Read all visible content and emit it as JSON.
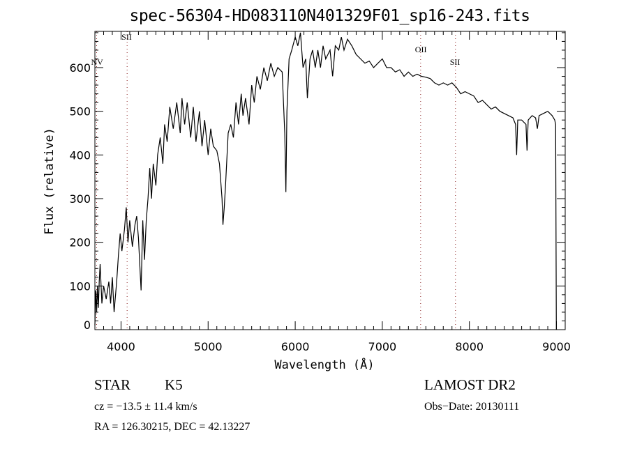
{
  "chart_data": {
    "type": "line",
    "title": "spec-56304-HD083110N401329F01_sp16-243.fits",
    "xlabel": "Wavelength (Å)",
    "ylabel": "Flux (relative)",
    "xlim": [
      3700,
      9100
    ],
    "ylim": [
      0,
      683
    ],
    "xticks": [
      4000,
      5000,
      6000,
      7000,
      8000,
      9000
    ],
    "yticks": [
      0,
      100,
      200,
      300,
      400,
      500,
      600
    ],
    "grid": false,
    "line_markers": [
      {
        "label": "NV",
        "wavelength": 3720
      },
      {
        "label": "SII",
        "wavelength": 4070
      },
      {
        "label": "OII",
        "wavelength": 7440
      },
      {
        "label": "SII",
        "wavelength": 7840
      }
    ],
    "series": [
      {
        "name": "spectrum",
        "x": [
          3700,
          3710,
          3720,
          3730,
          3740,
          3750,
          3760,
          3780,
          3800,
          3830,
          3860,
          3880,
          3900,
          3920,
          3950,
          3970,
          3990,
          4010,
          4040,
          4060,
          4080,
          4100,
          4130,
          4160,
          4180,
          4200,
          4230,
          4250,
          4270,
          4290,
          4310,
          4330,
          4350,
          4370,
          4400,
          4420,
          4450,
          4480,
          4500,
          4530,
          4560,
          4600,
          4640,
          4680,
          4700,
          4730,
          4760,
          4800,
          4830,
          4860,
          4900,
          4930,
          4960,
          5000,
          5030,
          5060,
          5100,
          5130,
          5160,
          5170,
          5185,
          5200,
          5230,
          5260,
          5290,
          5320,
          5350,
          5380,
          5400,
          5430,
          5470,
          5500,
          5530,
          5560,
          5600,
          5640,
          5680,
          5720,
          5760,
          5800,
          5850,
          5880,
          5893,
          5905,
          5930,
          5960,
          6000,
          6030,
          6060,
          6090,
          6120,
          6140,
          6170,
          6200,
          6230,
          6260,
          6290,
          6320,
          6350,
          6400,
          6430,
          6460,
          6500,
          6530,
          6560,
          6600,
          6650,
          6700,
          6750,
          6800,
          6850,
          6900,
          6950,
          7000,
          7050,
          7100,
          7150,
          7200,
          7250,
          7300,
          7350,
          7400,
          7450,
          7500,
          7550,
          7600,
          7650,
          7700,
          7750,
          7800,
          7850,
          7900,
          7950,
          8000,
          8050,
          8100,
          8150,
          8200,
          8250,
          8300,
          8350,
          8400,
          8450,
          8500,
          8530,
          8542,
          8555,
          8600,
          8650,
          8662,
          8675,
          8720,
          8760,
          8780,
          8800,
          8850,
          8900,
          8950,
          8980,
          8990,
          8998
        ],
        "y": [
          10,
          90,
          40,
          100,
          50,
          110,
          150,
          60,
          100,
          70,
          110,
          60,
          120,
          40,
          110,
          170,
          220,
          180,
          230,
          280,
          200,
          250,
          190,
          240,
          260,
          210,
          90,
          250,
          160,
          250,
          300,
          370,
          300,
          380,
          330,
          400,
          440,
          380,
          470,
          430,
          510,
          460,
          520,
          450,
          530,
          470,
          520,
          440,
          510,
          430,
          500,
          420,
          480,
          400,
          460,
          420,
          410,
          380,
          300,
          240,
          280,
          330,
          450,
          470,
          440,
          520,
          470,
          540,
          490,
          530,
          470,
          560,
          520,
          580,
          550,
          600,
          570,
          610,
          580,
          600,
          590,
          450,
          315,
          500,
          620,
          640,
          670,
          650,
          680,
          600,
          620,
          530,
          620,
          640,
          600,
          640,
          600,
          650,
          620,
          640,
          580,
          650,
          640,
          670,
          640,
          665,
          650,
          630,
          620,
          610,
          615,
          600,
          610,
          620,
          600,
          600,
          590,
          595,
          580,
          590,
          580,
          585,
          580,
          578,
          575,
          565,
          560,
          565,
          560,
          565,
          555,
          540,
          545,
          540,
          535,
          520,
          525,
          515,
          505,
          510,
          500,
          495,
          490,
          485,
          470,
          400,
          480,
          480,
          470,
          410,
          480,
          490,
          485,
          460,
          490,
          495,
          500,
          490,
          480,
          470,
          0
        ]
      }
    ]
  },
  "footer": {
    "object_class": "STAR",
    "subclass": "K5",
    "survey": "LAMOST DR2",
    "redshift": "cz = −13.5 ± 11.4 km/s",
    "obs_date": "Obs−Date: 20130111",
    "coords": "RA = 126.30215, DEC =  42.13227"
  }
}
